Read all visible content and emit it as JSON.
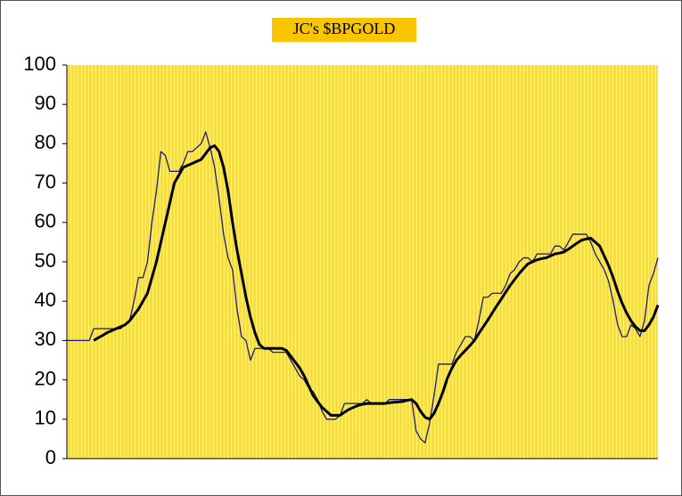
{
  "chart_data": {
    "type": "line",
    "title": "JC's $BPGOLD",
    "ylim": [
      0,
      100
    ],
    "yticks": [
      0,
      10,
      20,
      30,
      40,
      50,
      60,
      70,
      80,
      90,
      100
    ],
    "series": [
      {
        "color": "#1c1c78",
        "values": [
          30,
          30,
          30,
          30,
          30,
          30,
          33,
          33,
          33,
          33,
          33,
          33,
          33,
          34,
          35,
          40,
          46,
          46,
          50,
          60,
          68,
          78,
          77,
          73,
          73,
          73,
          75,
          78,
          78,
          79,
          80,
          83,
          79,
          74,
          66,
          57,
          51,
          48,
          38,
          31,
          30,
          25,
          28,
          28,
          28,
          28,
          27,
          27,
          27,
          27,
          25,
          23,
          21,
          20,
          18,
          17,
          15,
          12,
          10,
          10,
          10,
          11,
          14,
          14,
          14,
          14,
          14,
          15,
          14,
          14,
          14,
          14,
          15,
          15,
          15,
          15,
          15,
          15,
          7,
          5,
          4,
          9,
          16,
          24,
          24,
          24,
          24,
          27,
          29,
          31,
          31,
          30,
          35,
          41,
          41,
          42,
          42,
          42,
          44,
          47,
          48,
          50,
          51,
          51,
          50,
          52,
          52,
          52,
          52,
          54,
          54,
          53,
          55,
          57,
          57,
          57,
          57,
          55,
          52,
          50,
          48,
          45,
          40,
          34,
          31,
          31,
          34,
          33,
          31,
          35,
          44,
          47,
          51
        ]
      },
      {
        "color": "#000000",
        "values": [
          null,
          null,
          null,
          null,
          null,
          null,
          30,
          30.7,
          31.3,
          32,
          32.5,
          33,
          33.5,
          34,
          35,
          36.5,
          38,
          40,
          42,
          46,
          50,
          55,
          60,
          65,
          70,
          72,
          74,
          74.5,
          75,
          75.5,
          76,
          77.5,
          79,
          79.5,
          78,
          74,
          68,
          60,
          53,
          47,
          41,
          36,
          32,
          29,
          28,
          28,
          28,
          28,
          28,
          27.5,
          26,
          24.5,
          23,
          21,
          18.5,
          16,
          14.5,
          13,
          12,
          11,
          11,
          11,
          11.8,
          12.5,
          13,
          13.5,
          13.8,
          14,
          14,
          14,
          14,
          14,
          14.2,
          14.3,
          14.4,
          14.5,
          14.8,
          15,
          14,
          12,
          10.5,
          10,
          11.5,
          14,
          17,
          20.5,
          23,
          25,
          26.3,
          27.5,
          28.7,
          30,
          31.8,
          33.5,
          35.2,
          37,
          38.8,
          40.5,
          42.3,
          44,
          45.5,
          47,
          48.3,
          49.5,
          50,
          50.5,
          50.8,
          51,
          51.5,
          52,
          52.2,
          52.5,
          53.2,
          54,
          54.8,
          55.5,
          55.8,
          56,
          55,
          54,
          51.5,
          49,
          46,
          42.5,
          39.5,
          37,
          35,
          33.5,
          32.5,
          32.5,
          34,
          36,
          39
        ]
      }
    ]
  }
}
